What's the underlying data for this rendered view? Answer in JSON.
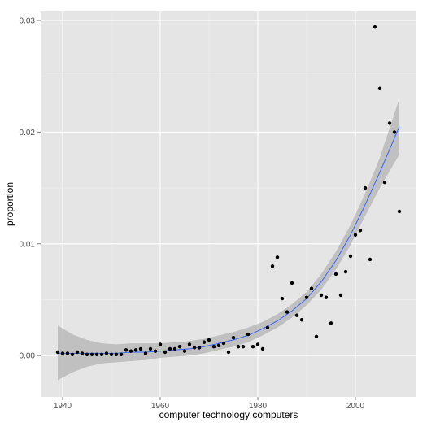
{
  "chart_data": {
    "type": "scatter",
    "xlabel": "computer technology computers",
    "ylabel": "proportion",
    "xlim": [
      1935.5,
      2012.5
    ],
    "ylim": [
      -0.0037,
      0.0308
    ],
    "x_ticks": [
      1940,
      1960,
      1980,
      2000
    ],
    "x_tick_labels": [
      "1940",
      "1960",
      "1980",
      "2000"
    ],
    "y_ticks": [
      0,
      0.01,
      0.02,
      0.03
    ],
    "y_tick_labels": [
      "0.00",
      "0.01",
      "0.02",
      "0.03"
    ],
    "grid": true,
    "colors": {
      "panel": "#e5e5e5",
      "grid_major": "#ffffff",
      "grid_minor": "#f0f0f0",
      "points": "#000000",
      "smooth_line": "#3366ff",
      "ribbon": "#b3b3b3"
    },
    "points": {
      "x": [
        1939,
        1940,
        1941,
        1942,
        1943,
        1944,
        1945,
        1946,
        1947,
        1948,
        1949,
        1950,
        1951,
        1952,
        1953,
        1954,
        1955,
        1956,
        1957,
        1958,
        1959,
        1960,
        1961,
        1962,
        1963,
        1964,
        1965,
        1966,
        1967,
        1968,
        1969,
        1970,
        1971,
        1972,
        1973,
        1974,
        1975,
        1976,
        1977,
        1978,
        1979,
        1980,
        1981,
        1982,
        1983,
        1984,
        1985,
        1986,
        1987,
        1988,
        1989,
        1990,
        1991,
        1992,
        1993,
        1994,
        1995,
        1996,
        1997,
        1998,
        1999,
        2000,
        2001,
        2002,
        2003,
        2004,
        2005,
        2006,
        2007,
        2008,
        2009
      ],
      "y": [
        0.0003,
        0.0002,
        0.0002,
        0.0001,
        0.0003,
        0.0002,
        0.0001,
        0.0001,
        0.0001,
        0.0001,
        0.0002,
        0.0001,
        0.0001,
        0.0001,
        0.0005,
        0.0004,
        0.0005,
        0.0006,
        0.0002,
        0.0006,
        0.0004,
        0.001,
        0.0003,
        0.0006,
        0.0006,
        0.0008,
        0.0004,
        0.001,
        0.0007,
        0.0007,
        0.0012,
        0.0014,
        0.0008,
        0.0009,
        0.0011,
        0.0003,
        0.0016,
        0.0008,
        0.0008,
        0.0019,
        0.0008,
        0.001,
        0.0006,
        0.0025,
        0.008,
        0.0088,
        0.0051,
        0.0039,
        0.0065,
        0.0036,
        0.0032,
        0.0052,
        0.006,
        0.0017,
        0.0054,
        0.0052,
        0.0029,
        0.0073,
        0.0054,
        0.0075,
        0.0089,
        0.0108,
        0.0112,
        0.015,
        0.0086,
        0.0294,
        0.0239,
        0.0155,
        0.0208,
        0.02,
        0.0129
      ]
    },
    "smooth": {
      "x": [
        1939,
        1942,
        1945,
        1948,
        1951,
        1954,
        1957,
        1960,
        1963,
        1966,
        1969,
        1972,
        1975,
        1978,
        1981,
        1984,
        1987,
        1990,
        1993,
        1996,
        1999,
        2002,
        2005,
        2009
      ],
      "y": [
        0.0002,
        0.0002,
        0.0002,
        0.0002,
        0.0002,
        0.0003,
        0.0003,
        0.0004,
        0.0005,
        0.0006,
        0.0008,
        0.0011,
        0.0014,
        0.0018,
        0.0024,
        0.0031,
        0.004,
        0.0051,
        0.0066,
        0.0085,
        0.0108,
        0.0135,
        0.0164,
        0.0205
      ],
      "lower": [
        -0.0022,
        -0.0015,
        -0.001,
        -0.0007,
        -0.0006,
        -0.0005,
        -0.0004,
        -0.0002,
        -0.0001,
        0.0,
        0.0002,
        0.0005,
        0.0008,
        0.0012,
        0.0018,
        0.0025,
        0.0034,
        0.0045,
        0.0059,
        0.0077,
        0.0099,
        0.0125,
        0.015,
        0.018
      ],
      "upper": [
        0.0027,
        0.0019,
        0.0014,
        0.0011,
        0.001,
        0.0011,
        0.0011,
        0.0011,
        0.0012,
        0.0013,
        0.0015,
        0.0018,
        0.0021,
        0.0025,
        0.003,
        0.0037,
        0.0046,
        0.0057,
        0.0073,
        0.0093,
        0.0117,
        0.0145,
        0.0177,
        0.023
      ]
    }
  }
}
